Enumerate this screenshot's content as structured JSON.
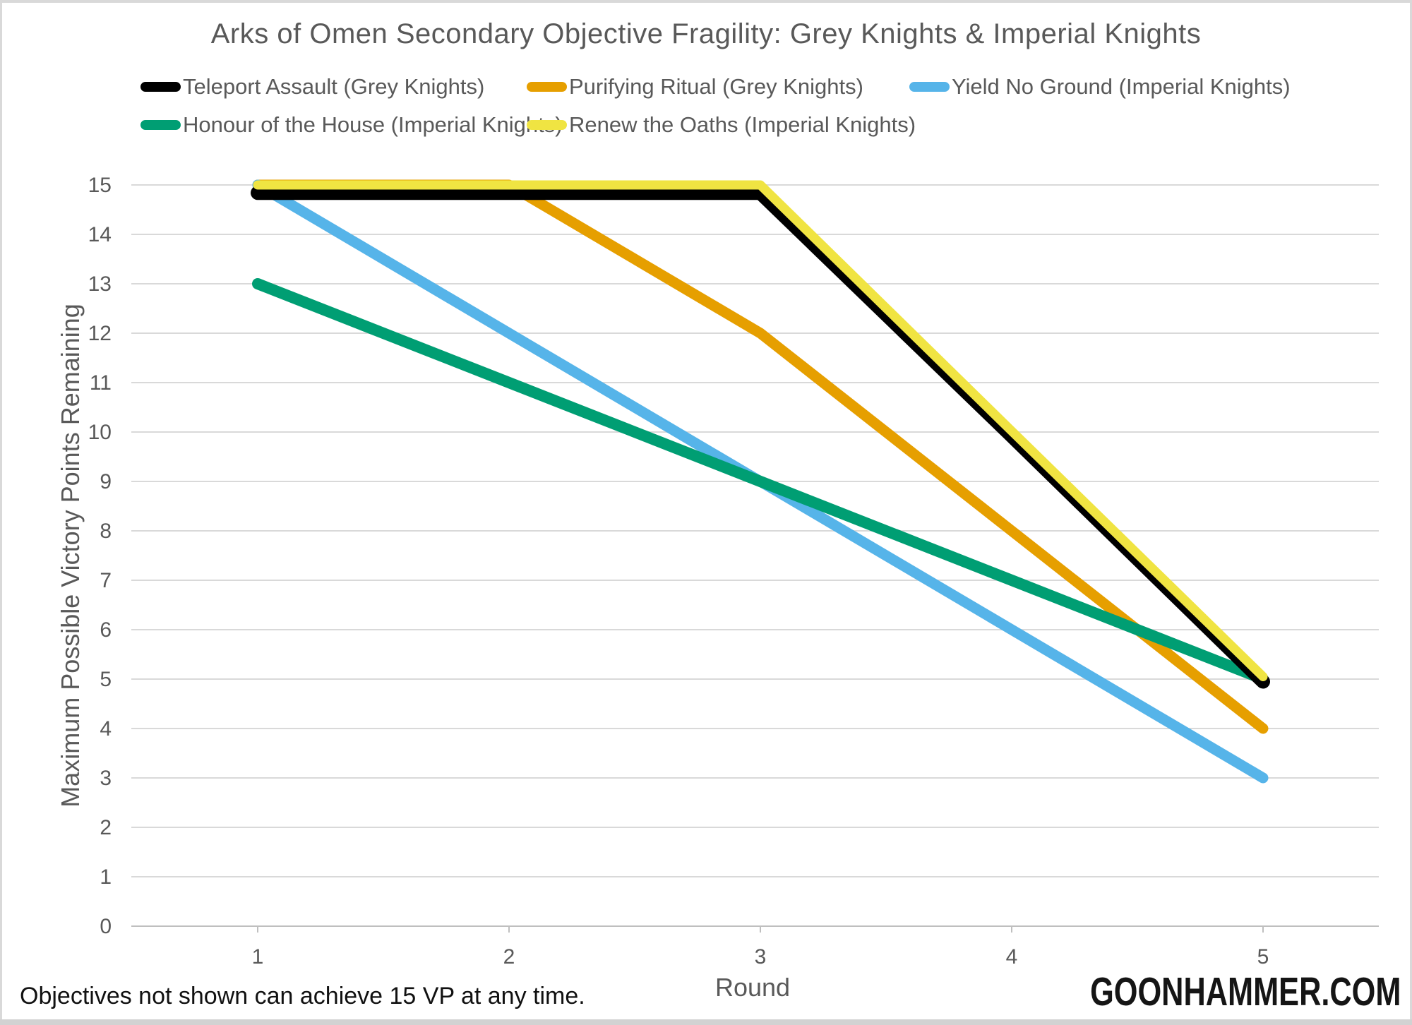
{
  "page": {
    "title": "Arks of Omen Secondary Objective Fragility: Grey Knights & Imperial Knights",
    "footnote": "Objectives not shown can achieve 15 VP at any time.",
    "watermark": "GOONHAMMER.COM"
  },
  "colors": {
    "title_text": "#595959",
    "axis_text": "#595959",
    "gridline": "#D9D9D9",
    "axis_line": "#BFBFBF",
    "ink": "#111111",
    "frame": "#D9D9D9"
  },
  "chart_data": {
    "type": "line",
    "title": "Arks of Omen Secondary Objective Fragility: Grey Knights & Imperial Knights",
    "xlabel": "Round",
    "ylabel": "Maximum Possible Victory Points Remaining",
    "x": [
      1,
      2,
      3,
      4,
      5
    ],
    "xlim": [
      0.5,
      5.5
    ],
    "ylim": [
      0,
      15
    ],
    "y_ticks": [
      0,
      1,
      2,
      3,
      4,
      5,
      6,
      7,
      8,
      9,
      10,
      11,
      12,
      13,
      14,
      15
    ],
    "grid": "horizontal",
    "legend_position": "top",
    "annotation": "Objectives not shown can achieve 15 VP at any time.",
    "series": [
      {
        "name": "Teleport Assault (Grey Knights)",
        "color": "#000000",
        "values": [
          15,
          15,
          15,
          10,
          5
        ]
      },
      {
        "name": "Purifying Ritual (Grey Knights)",
        "color": "#E69F00",
        "values": [
          15,
          15,
          12,
          8,
          4
        ]
      },
      {
        "name": "Yield No Ground (Imperial Knights)",
        "color": "#56B4E9",
        "values": [
          15,
          12,
          9,
          6,
          3
        ]
      },
      {
        "name": "Honour of the House (Imperial Knights)",
        "color": "#009E73",
        "values": [
          13,
          11,
          9,
          7,
          5
        ]
      },
      {
        "name": "Renew the Oaths (Imperial Knights)",
        "color": "#F0E442",
        "values": [
          15,
          15,
          15,
          10,
          5
        ]
      }
    ]
  }
}
